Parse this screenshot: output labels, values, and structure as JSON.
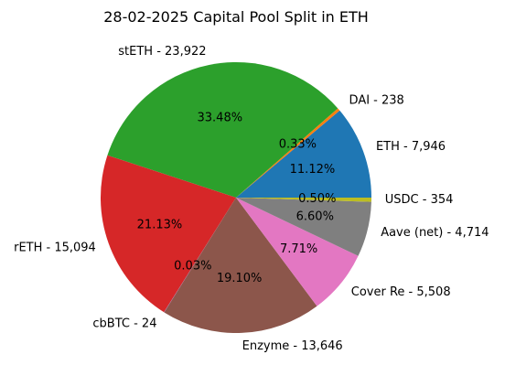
{
  "chart_data": {
    "type": "pie",
    "title": "28-02-2025 Capital Pool Split in ETH",
    "slices": [
      {
        "label": "ETH - 7,946",
        "value": 7946,
        "pct_label": "11.12%",
        "color": "#1f77b4"
      },
      {
        "label": "DAI - 238",
        "value": 238,
        "pct_label": "0.33%",
        "color": "#ff7f0e"
      },
      {
        "label": "stETH - 23,922",
        "value": 23922,
        "pct_label": "33.48%",
        "color": "#2ca02c"
      },
      {
        "label": "rETH - 15,094",
        "value": 15094,
        "pct_label": "21.13%",
        "color": "#d62728"
      },
      {
        "label": "cbBTC - 24",
        "value": 24,
        "pct_label": "0.03%",
        "color": "#9467bd"
      },
      {
        "label": "Enzyme - 13,646",
        "value": 13646,
        "pct_label": "19.10%",
        "color": "#8c564b"
      },
      {
        "label": "Cover Re - 5,508",
        "value": 5508,
        "pct_label": "7.71%",
        "color": "#e377c2"
      },
      {
        "label": "Aave (net) - 4,714",
        "value": 4714,
        "pct_label": "6.60%",
        "color": "#7f7f7f"
      },
      {
        "label": "USDC - 354",
        "value": 354,
        "pct_label": "0.50%",
        "color": "#bcbd22"
      }
    ]
  }
}
